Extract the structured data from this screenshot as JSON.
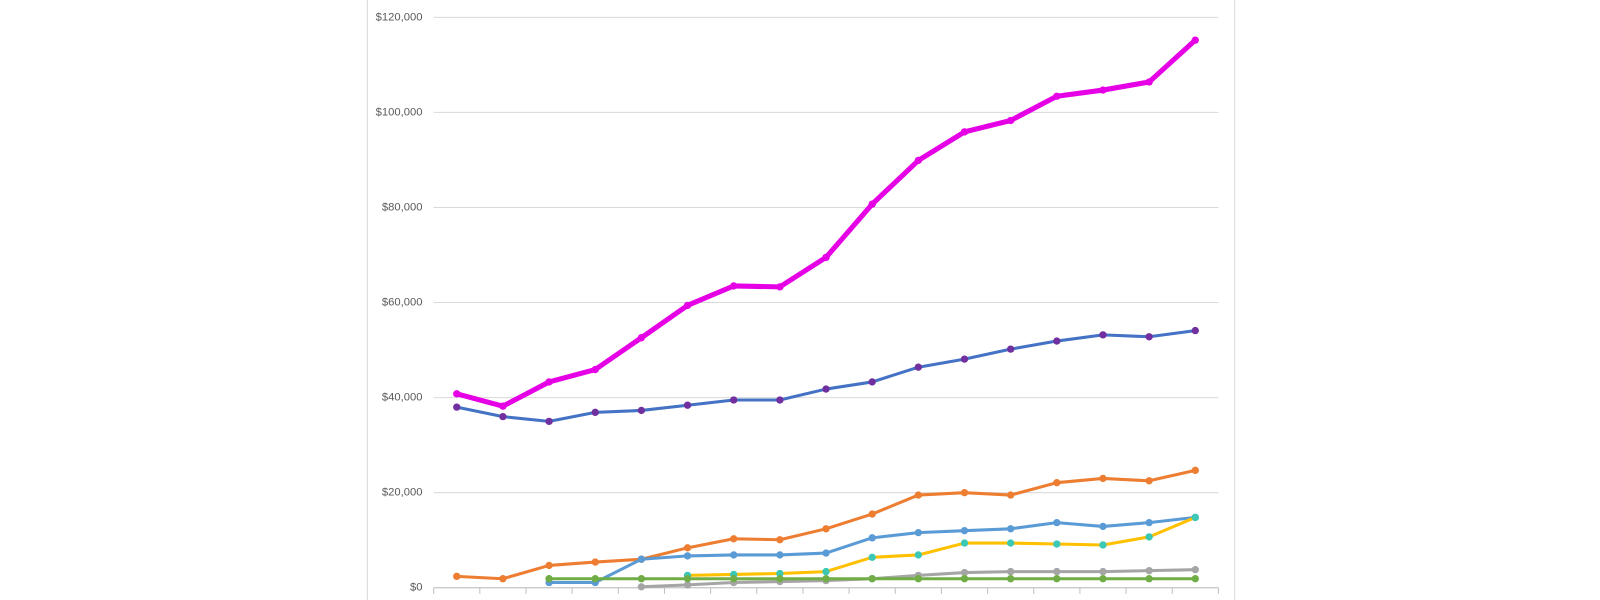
{
  "chart_data": {
    "type": "line",
    "categories": [
      null,
      null,
      null,
      null,
      null,
      null,
      null,
      null,
      null,
      null,
      null,
      null,
      null,
      null,
      null,
      null,
      null
    ],
    "ylim": [
      0,
      120000
    ],
    "yticks": [
      {
        "value": 0,
        "label": "$0"
      },
      {
        "value": 20000,
        "label": "$20,000"
      },
      {
        "value": 40000,
        "label": "$40,000"
      },
      {
        "value": 60000,
        "label": "$60,000"
      },
      {
        "value": 80000,
        "label": "$80,000"
      },
      {
        "value": 100000,
        "label": "$100,000"
      },
      {
        "value": 120000,
        "label": "$120,000"
      }
    ],
    "grid": true,
    "series": [
      {
        "color": "#e600e6",
        "marker_color": "#e600e6",
        "width": 5,
        "values": [
          40800,
          38200,
          43300,
          45900,
          52600,
          59400,
          63500,
          63300,
          69500,
          80700,
          89900,
          95900,
          98300,
          103400,
          104700,
          106400,
          115200
        ]
      },
      {
        "color": "#4472c4",
        "marker_color": "#7030a0",
        "width": 3,
        "values": [
          38000,
          36000,
          35000,
          36900,
          37300,
          38400,
          39500,
          39500,
          41800,
          43300,
          46400,
          48100,
          50200,
          51900,
          53200,
          52800,
          54100
        ]
      },
      {
        "color": "#ed7d31",
        "marker_color": "#ed7d31",
        "width": 3,
        "values": [
          2400,
          1900,
          4700,
          5400,
          6000,
          8400,
          10300,
          10100,
          12400,
          15500,
          19500,
          20000,
          19500,
          22100,
          23000,
          22500,
          24700
        ]
      },
      {
        "color": "#5b9bd5",
        "marker_color": "#5b9bd5",
        "width": 3,
        "values": [
          null,
          null,
          1100,
          1100,
          6000,
          6700,
          6900,
          6900,
          7300,
          10500,
          11600,
          12000,
          12400,
          13700,
          12900,
          13700,
          14800
        ]
      },
      {
        "color": "#ffc000",
        "marker_color": "#3cc8b4",
        "width": 3,
        "values": [
          null,
          null,
          null,
          null,
          null,
          2600,
          2800,
          3000,
          3400,
          6400,
          6900,
          9400,
          9400,
          9200,
          9000,
          10700,
          14800
        ]
      },
      {
        "color": "#a5a5a5",
        "marker_color": "#a5a5a5",
        "width": 3,
        "values": [
          null,
          null,
          null,
          null,
          200,
          600,
          1100,
          1300,
          1500,
          1900,
          2600,
          3200,
          3400,
          3400,
          3400,
          3600,
          3800
        ]
      },
      {
        "color": "#70ad47",
        "marker_color": "#70ad47",
        "width": 3,
        "values": [
          null,
          null,
          1900,
          1900,
          1900,
          1900,
          1900,
          1900,
          1900,
          1900,
          1900,
          1900,
          1900,
          1900,
          1900,
          1900,
          1900
        ]
      }
    ]
  }
}
